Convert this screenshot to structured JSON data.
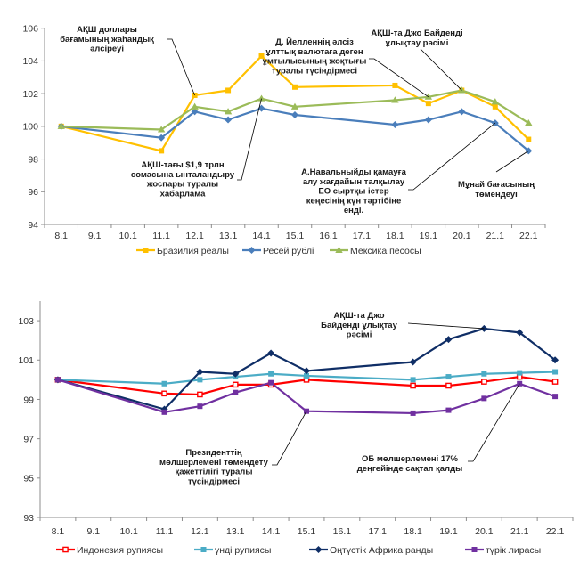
{
  "chart_data": [
    {
      "type": "line",
      "title": "",
      "xlabel": "",
      "ylabel": "",
      "grid": false,
      "legend": "bottom",
      "categories": [
        "8.1",
        "9.1",
        "10.1",
        "11.1",
        "12.1",
        "13.1",
        "14.1",
        "15.1",
        "16.1",
        "17.1",
        "18.1",
        "19.1",
        "20.1",
        "21.1",
        "22.1"
      ],
      "ylim": [
        94,
        106
      ],
      "yticks": [
        94,
        96,
        98,
        100,
        102,
        104,
        106
      ],
      "series": [
        {
          "key": "brazil-real",
          "name": "Бразилия реалы",
          "color": "#FFC000",
          "marker": "square",
          "values": [
            100.0,
            null,
            null,
            98.5,
            101.9,
            102.2,
            104.3,
            102.4,
            null,
            null,
            102.5,
            101.4,
            102.2,
            101.2,
            99.2
          ]
        },
        {
          "key": "russia-ruble",
          "name": "Ресей рублі",
          "color": "#4A7EBB",
          "marker": "diamond",
          "values": [
            100.0,
            null,
            null,
            99.3,
            100.9,
            100.4,
            101.1,
            100.7,
            null,
            null,
            100.1,
            100.4,
            100.9,
            100.2,
            98.5
          ]
        },
        {
          "key": "mexico-peso",
          "name": "Мексика песосы",
          "color": "#9BBB59",
          "marker": "triangle",
          "values": [
            100.0,
            null,
            null,
            99.8,
            101.2,
            100.9,
            101.7,
            101.2,
            null,
            null,
            101.6,
            101.8,
            102.2,
            101.5,
            100.2
          ]
        }
      ],
      "annotations": [
        {
          "lines": [
            "АҚШ доллары",
            "бағамының жаһандық",
            "әлсіреуі"
          ],
          "anchor": {
            "series": 0,
            "category": "12.1"
          }
        },
        {
          "lines": [
            "Д. Йелленнің әлсіз",
            "ұлттық валютаға деген",
            "ұмтылысының жоқтығы",
            "туралы түсіндірмесі"
          ],
          "anchor": {
            "series": 2,
            "category": "19.1"
          }
        },
        {
          "lines": [
            "АҚШ-та Джо Байденді",
            "ұлықтау рәсімі"
          ],
          "anchor": {
            "series": 2,
            "category": "20.1"
          }
        },
        {
          "lines": [
            "АҚШ-тағы $1,9 трлн",
            "сомасына ынталандыру",
            "жоспары туралы",
            "хабарлама"
          ],
          "anchor": {
            "series": 2,
            "category": "14.1"
          }
        },
        {
          "lines": [
            "А.Навальныйды қамауға",
            "алу жағдайын талқылау",
            "ЕО сыртқы істер",
            "кеңесінің күн тәртібіне",
            "енді."
          ],
          "anchor": {
            "series": 1,
            "category": "21.1"
          }
        },
        {
          "lines": [
            "Мұнай бағасының",
            "төмендеуі"
          ],
          "anchor": {
            "series": 1,
            "category": "22.1"
          }
        }
      ]
    },
    {
      "type": "line",
      "title": "",
      "xlabel": "",
      "ylabel": "",
      "grid": false,
      "legend": "bottom",
      "categories": [
        "8.1",
        "9.1",
        "10.1",
        "11.1",
        "12.1",
        "13.1",
        "14.1",
        "15.1",
        "16.1",
        "17.1",
        "18.1",
        "19.1",
        "20.1",
        "21.1",
        "22.1"
      ],
      "ylim": [
        93,
        104
      ],
      "yticks": [
        93,
        95,
        97,
        99,
        101,
        103
      ],
      "series": [
        {
          "key": "indonesia-rupiah",
          "name": "Индонезия рупиясы",
          "color": "#FF0000",
          "marker": "open-square",
          "values": [
            100.0,
            null,
            null,
            99.3,
            99.25,
            99.75,
            99.75,
            100.0,
            null,
            null,
            99.7,
            99.7,
            99.9,
            100.15,
            99.9
          ]
        },
        {
          "key": "india-rupee",
          "name": "үнді рупиясы",
          "color": "#4BACC6",
          "marker": "square",
          "values": [
            100.0,
            null,
            null,
            99.8,
            100.0,
            100.15,
            100.3,
            100.2,
            null,
            null,
            100.0,
            100.15,
            100.3,
            100.35,
            100.4
          ]
        },
        {
          "key": "south-africa-rand",
          "name": "Оңтүстік Африка ранды",
          "color": "#0F2E66",
          "marker": "diamond",
          "values": [
            100.0,
            null,
            null,
            98.5,
            100.4,
            100.3,
            101.35,
            100.45,
            null,
            null,
            100.9,
            102.05,
            102.6,
            102.4,
            101.0
          ]
        },
        {
          "key": "turkish-lira",
          "name": "түрік лирасы",
          "color": "#7030A0",
          "marker": "square",
          "values": [
            100.0,
            null,
            null,
            98.35,
            98.65,
            99.35,
            99.85,
            98.4,
            null,
            null,
            98.3,
            98.45,
            99.05,
            99.8,
            99.15
          ]
        }
      ],
      "annotations": [
        {
          "lines": [
            "АҚШ-та Джо",
            "Байденді ұлықтау",
            "рәсімі"
          ],
          "anchor": {
            "series": 2,
            "category": "20.1"
          }
        },
        {
          "lines": [
            "Президенттің",
            "мөлшерлемені төмендету",
            "қажеттілігі туралы",
            "түсіндірмесі"
          ],
          "anchor": {
            "series": 3,
            "category": "15.1"
          }
        },
        {
          "lines": [
            "ОБ мөлшерлемені 17%",
            "деңгейінде сақтап қалды"
          ],
          "anchor": {
            "series": 3,
            "category": "21.1"
          }
        }
      ]
    }
  ]
}
